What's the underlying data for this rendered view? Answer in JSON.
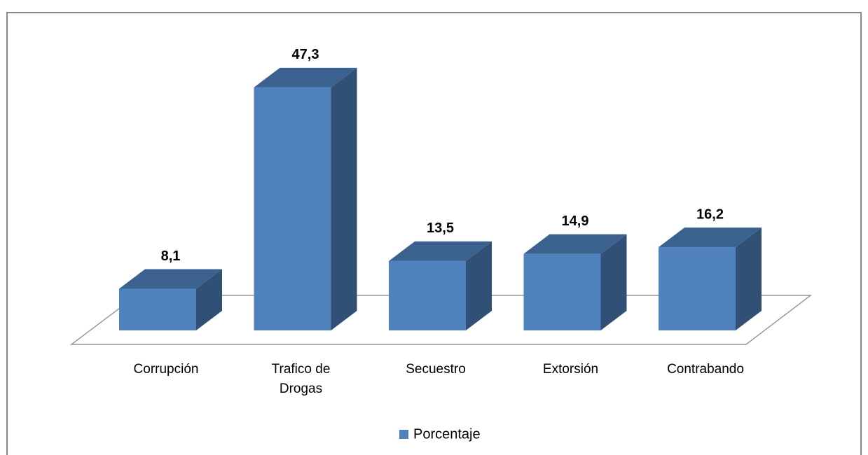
{
  "chart_data": {
    "type": "bar3d",
    "categories": [
      "Corrupción",
      "Trafico de Drogas",
      "Secuestro",
      "Extorsión",
      "Contrabando"
    ],
    "series": [
      {
        "name": "Porcentaje",
        "color": "#4f81bd",
        "values": [
          8.1,
          47.3,
          13.5,
          14.9,
          16.2
        ],
        "value_labels": [
          "8,1",
          "47,3",
          "13,5",
          "14,9",
          "16,2"
        ]
      }
    ],
    "legend": "bottom"
  }
}
